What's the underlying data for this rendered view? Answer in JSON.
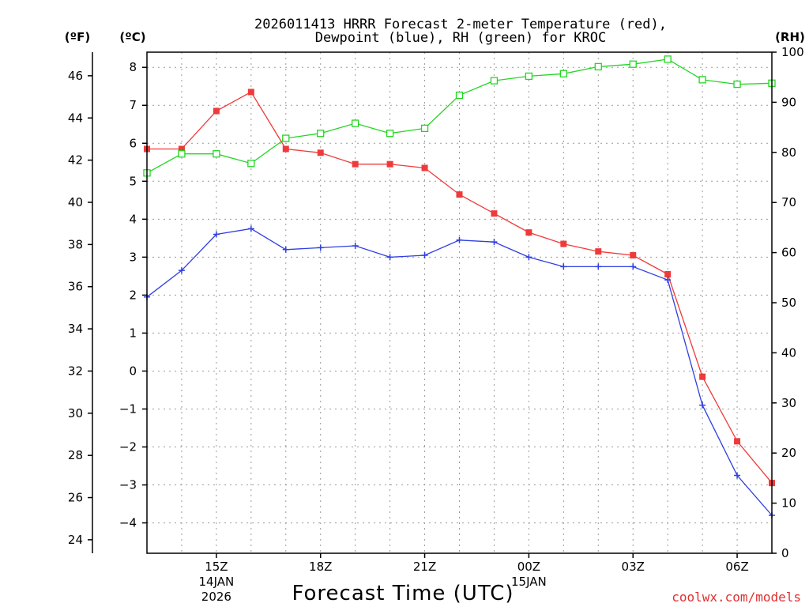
{
  "chart_data": {
    "type": "line",
    "title_line1": "2026011413 HRRR Forecast 2-meter Temperature (red),",
    "title_line2": "Dewpoint (blue), RH (green) for KROC",
    "xlabel": "Forecast Time (UTC)",
    "ylabel_left_f": "(ºF)",
    "ylabel_left_c": "(ºC)",
    "ylabel_right": "(RH)",
    "credit": "coolwx.com/models",
    "x_hours": [
      13,
      14,
      15,
      16,
      17,
      18,
      19,
      20,
      21,
      22,
      23,
      24,
      25,
      26,
      27,
      28,
      29,
      30,
      31
    ],
    "xlim": [
      13,
      31
    ],
    "x_ticks": [
      {
        "hour": 15,
        "label": "15Z",
        "date": "14JAN",
        "year": "2026"
      },
      {
        "hour": 18,
        "label": "18Z",
        "date": "",
        "year": ""
      },
      {
        "hour": 21,
        "label": "21Z",
        "date": "",
        "year": ""
      },
      {
        "hour": 24,
        "label": "00Z",
        "date": "15JAN",
        "year": ""
      },
      {
        "hour": 27,
        "label": "03Z",
        "date": "",
        "year": ""
      },
      {
        "hour": 30,
        "label": "06Z",
        "date": "",
        "year": ""
      }
    ],
    "celsius_axis": {
      "ylim": [
        -4.8,
        8.4
      ],
      "ticks": [
        -4,
        -3,
        -2,
        -1,
        0,
        1,
        2,
        3,
        4,
        5,
        6,
        7,
        8
      ]
    },
    "fahrenheit_axis": {
      "ylim": [
        23.36,
        47.12
      ],
      "ticks": [
        24,
        26,
        28,
        30,
        32,
        34,
        36,
        38,
        40,
        42,
        44,
        46
      ]
    },
    "rh_axis": {
      "ylim": [
        0,
        100
      ],
      "ticks": [
        0,
        10,
        20,
        30,
        40,
        50,
        60,
        70,
        80,
        90,
        100
      ]
    },
    "series": [
      {
        "name": "Temperature",
        "unit": "C",
        "color": "#ef3a3a",
        "values": [
          5.85,
          5.85,
          6.85,
          7.35,
          5.85,
          5.75,
          5.45,
          5.45,
          5.35,
          4.65,
          4.15,
          3.65,
          3.35,
          3.15,
          3.05,
          2.55,
          -0.15,
          -1.85,
          -2.95
        ]
      },
      {
        "name": "Dewpoint",
        "unit": "C",
        "color": "#2f3fe0",
        "values": [
          1.95,
          2.65,
          3.6,
          3.75,
          3.2,
          3.25,
          3.3,
          3.0,
          3.05,
          3.45,
          3.4,
          3.0,
          2.75,
          2.75,
          2.75,
          2.4,
          -0.9,
          -2.75,
          -3.8
        ]
      },
      {
        "name": "RH",
        "unit": "%",
        "color": "#22d622",
        "values": [
          75.9,
          79.7,
          79.7,
          77.8,
          82.8,
          83.8,
          85.8,
          83.8,
          84.8,
          91.4,
          94.3,
          95.2,
          95.7,
          97.1,
          97.6,
          98.6,
          94.5,
          93.6,
          93.8
        ]
      }
    ]
  }
}
